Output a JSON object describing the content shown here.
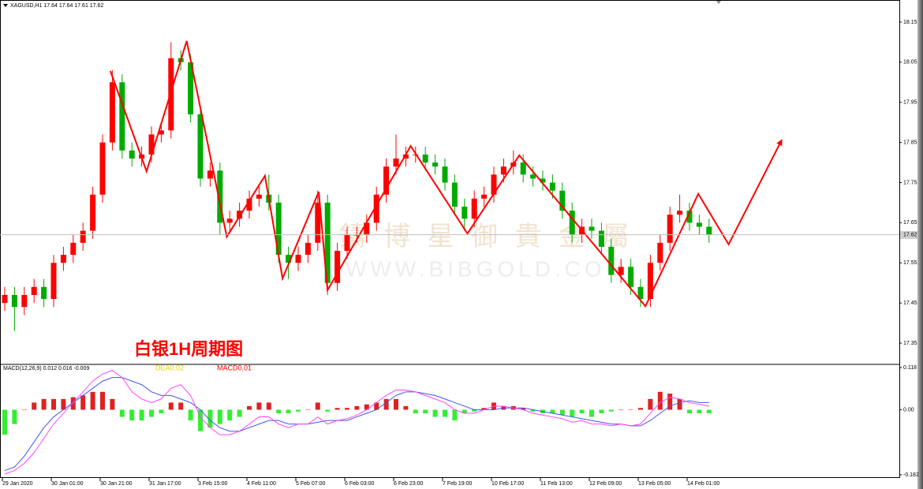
{
  "chart_data": [
    {
      "type": "candlestick",
      "title": "XAGUSD,H1  17.64 17.64 17.61 17.62",
      "annotation": "白银1H周期图",
      "watermark": "鑄 博 星 御 貴 金 屬",
      "watermark_url": "WWW.BIBGOLD.COM",
      "categories": [
        "29 Jan 2020",
        null,
        null,
        null,
        null,
        "30 Jan 01:00",
        null,
        null,
        null,
        null,
        "30 Jan 21:00",
        null,
        null,
        null,
        null,
        "31 Jan 17:00",
        null,
        null,
        null,
        null,
        "3 Feb 15:00",
        null,
        null,
        null,
        null,
        "4 Feb 11:00",
        null,
        null,
        null,
        null,
        "5 Feb 07:00",
        null,
        null,
        null,
        null,
        "6 Feb 03:00",
        null,
        null,
        null,
        null,
        "6 Feb 23:00",
        null,
        null,
        null,
        null,
        "7 Feb 19:00",
        null,
        null,
        null,
        null,
        "10 Feb 17:00",
        null,
        null,
        null,
        null,
        "11 Feb 13:00",
        null,
        null,
        null,
        null,
        "12 Feb 09:00",
        null,
        null,
        null,
        null,
        "13 Feb 05:00",
        null,
        null,
        null,
        null,
        "14 Feb 01:00",
        null,
        null
      ],
      "open": [
        17.45,
        17.47,
        17.44,
        17.47,
        17.49,
        17.46,
        17.55,
        17.57,
        17.6,
        17.63,
        17.72,
        17.85,
        18.0,
        17.83,
        17.81,
        17.82,
        17.87,
        17.88,
        18.06,
        18.05,
        17.92,
        17.76,
        17.78,
        17.65,
        17.66,
        17.68,
        17.71,
        17.72,
        17.7,
        17.57,
        17.55,
        17.57,
        17.6,
        17.7,
        17.5,
        17.58,
        17.62,
        17.62,
        17.65,
        17.72,
        17.79,
        17.81,
        17.82,
        17.82,
        17.8,
        17.79,
        17.75,
        17.69,
        17.66,
        17.71,
        17.72,
        17.77,
        17.79,
        17.8,
        17.77,
        17.76,
        17.75,
        17.73,
        17.68,
        17.62,
        17.64,
        17.63,
        17.59,
        17.52,
        17.54,
        17.49,
        17.46,
        17.55,
        17.6,
        17.67,
        17.68,
        17.65,
        17.64
      ],
      "high": [
        17.49,
        17.49,
        17.49,
        17.51,
        17.51,
        17.57,
        17.59,
        17.62,
        17.65,
        17.74,
        17.87,
        18.03,
        18.02,
        17.85,
        17.84,
        17.89,
        17.9,
        18.1,
        18.08,
        18.07,
        17.94,
        17.8,
        17.8,
        17.68,
        17.7,
        17.73,
        17.74,
        17.77,
        17.72,
        17.59,
        17.59,
        17.62,
        17.73,
        17.72,
        17.6,
        17.64,
        17.64,
        17.67,
        17.74,
        17.81,
        17.87,
        17.84,
        17.84,
        17.84,
        17.82,
        17.81,
        17.77,
        17.71,
        17.73,
        17.74,
        17.79,
        17.81,
        17.83,
        17.82,
        17.79,
        17.78,
        17.77,
        17.75,
        17.7,
        17.66,
        17.66,
        17.65,
        17.61,
        17.56,
        17.56,
        17.51,
        17.57,
        17.62,
        17.69,
        17.72,
        17.7,
        17.67,
        17.66
      ],
      "low": [
        17.43,
        17.38,
        17.42,
        17.45,
        17.44,
        17.44,
        17.53,
        17.55,
        17.58,
        17.61,
        17.7,
        17.83,
        17.81,
        17.79,
        17.79,
        17.8,
        17.85,
        17.86,
        18.03,
        17.9,
        17.74,
        17.74,
        17.62,
        17.63,
        17.64,
        17.66,
        17.69,
        17.68,
        17.55,
        17.51,
        17.53,
        17.55,
        17.58,
        17.47,
        17.48,
        17.56,
        17.6,
        17.6,
        17.63,
        17.7,
        17.77,
        17.79,
        17.8,
        17.78,
        17.77,
        17.73,
        17.67,
        17.63,
        17.64,
        17.69,
        17.7,
        17.75,
        17.77,
        17.75,
        17.74,
        17.73,
        17.71,
        17.66,
        17.6,
        17.6,
        17.61,
        17.57,
        17.5,
        17.5,
        17.47,
        17.44,
        17.44,
        17.53,
        17.58,
        17.65,
        17.63,
        17.62,
        17.6
      ],
      "close": [
        17.47,
        17.44,
        17.47,
        17.49,
        17.46,
        17.55,
        17.57,
        17.6,
        17.63,
        17.72,
        17.85,
        18.0,
        17.83,
        17.81,
        17.82,
        17.87,
        17.88,
        18.06,
        18.05,
        17.92,
        17.76,
        17.78,
        17.65,
        17.66,
        17.68,
        17.71,
        17.72,
        17.7,
        17.57,
        17.55,
        17.57,
        17.6,
        17.7,
        17.5,
        17.58,
        17.62,
        17.62,
        17.65,
        17.72,
        17.79,
        17.81,
        17.82,
        17.82,
        17.8,
        17.79,
        17.75,
        17.69,
        17.66,
        17.71,
        17.72,
        17.77,
        17.79,
        17.8,
        17.77,
        17.76,
        17.75,
        17.73,
        17.68,
        17.62,
        17.64,
        17.63,
        17.59,
        17.52,
        17.54,
        17.49,
        17.46,
        17.55,
        17.6,
        17.67,
        17.68,
        17.65,
        17.64,
        17.62
      ],
      "up_color": "#ff0000",
      "down_color": "#00aa00",
      "last_price": 17.62,
      "zigzag": {
        "color": "#ff0000",
        "x": [
          10.8,
          14.5,
          18.6,
          22.7,
          26.6,
          28.4,
          32.1,
          33.0,
          41.5,
          47.3,
          52.6,
          65.5,
          70.9,
          74.0,
          79.4
        ],
        "y": [
          18.028,
          17.778,
          18.103,
          17.615,
          17.767,
          17.511,
          17.727,
          17.482,
          17.841,
          17.623,
          17.818,
          17.442,
          17.722,
          17.596,
          17.855
        ]
      },
      "ylim": [
        17.297,
        18.205
      ],
      "yticks": [
        17.35,
        17.45,
        17.55,
        17.65,
        17.75,
        17.85,
        17.95,
        18.05,
        18.15
      ]
    },
    {
      "type": "macd",
      "title": "MACD(12,26,9) 0.012 0.016 -0.009",
      "legend": [
        {
          "text": "DEA0.02",
          "color": "#e6d200"
        },
        {
          "text": "MACD0.01",
          "color": "#ff0000"
        }
      ],
      "histogram": [
        -0.07,
        -0.04,
        0.0,
        0.02,
        0.03,
        0.03,
        0.03,
        0.035,
        0.04,
        0.05,
        0.05,
        0.03,
        -0.02,
        -0.03,
        -0.03,
        -0.02,
        -0.01,
        0.02,
        0.02,
        -0.03,
        -0.06,
        -0.05,
        -0.04,
        -0.03,
        -0.02,
        0.01,
        0.02,
        0.02,
        -0.01,
        -0.01,
        -0.005,
        0.0,
        0.02,
        -0.005,
        0.005,
        0.005,
        0.01,
        0.015,
        0.02,
        0.03,
        0.03,
        0.01,
        -0.01,
        -0.01,
        -0.02,
        -0.02,
        -0.03,
        -0.01,
        -0.005,
        0.005,
        0.02,
        0.01,
        0.01,
        0.005,
        -0.005,
        -0.01,
        -0.01,
        -0.015,
        -0.02,
        -0.01,
        -0.02,
        -0.01,
        -0.005,
        0.0,
        0.0,
        0.005,
        0.03,
        0.05,
        0.045,
        0.03,
        -0.01,
        -0.01,
        -0.01
      ],
      "pos_color": "#dd2222",
      "neg_color": "#33ee33",
      "series": [
        {
          "color": "#4455ee",
          "values": [
            -0.17,
            -0.16,
            -0.13,
            -0.09,
            -0.05,
            -0.02,
            0.0,
            0.02,
            0.04,
            0.06,
            0.08,
            0.09,
            0.09,
            0.08,
            0.07,
            0.05,
            0.04,
            0.04,
            0.03,
            0.02,
            0.0,
            -0.03,
            -0.05,
            -0.06,
            -0.06,
            -0.05,
            -0.04,
            -0.03,
            -0.03,
            -0.04,
            -0.04,
            -0.04,
            -0.035,
            -0.03,
            -0.03,
            -0.03,
            -0.02,
            -0.01,
            0.0,
            0.02,
            0.04,
            0.05,
            0.05,
            0.045,
            0.04,
            0.03,
            0.02,
            0.01,
            0.0,
            0.0,
            0.0,
            0.005,
            0.005,
            0.005,
            0.0,
            -0.005,
            -0.01,
            -0.015,
            -0.02,
            -0.025,
            -0.03,
            -0.035,
            -0.04,
            -0.04,
            -0.045,
            -0.045,
            -0.03,
            -0.01,
            0.01,
            0.02,
            0.025,
            0.02,
            0.02
          ]
        },
        {
          "color": "#ff44ff",
          "values": [
            -0.18,
            -0.17,
            -0.15,
            -0.12,
            -0.08,
            -0.04,
            -0.01,
            0.02,
            0.05,
            0.08,
            0.1,
            0.11,
            0.09,
            0.05,
            0.03,
            0.02,
            0.03,
            0.06,
            0.07,
            0.04,
            -0.02,
            -0.05,
            -0.07,
            -0.07,
            -0.06,
            -0.04,
            -0.02,
            -0.02,
            -0.04,
            -0.05,
            -0.04,
            -0.04,
            -0.02,
            -0.04,
            -0.03,
            -0.025,
            -0.015,
            0.0,
            0.02,
            0.04,
            0.055,
            0.055,
            0.05,
            0.04,
            0.03,
            0.02,
            0.0,
            -0.01,
            -0.01,
            0.0,
            0.01,
            0.01,
            0.005,
            0.0,
            -0.01,
            -0.015,
            -0.02,
            -0.025,
            -0.035,
            -0.03,
            -0.04,
            -0.04,
            -0.045,
            -0.04,
            -0.045,
            -0.04,
            -0.01,
            0.02,
            0.035,
            0.03,
            0.02,
            0.015,
            0.01
          ]
        }
      ],
      "ylim": [
        -0.1908,
        0.1268
      ],
      "yticks": [
        -0.182,
        {
          "value": 0,
          "label": "0.00"
        },
        0.118
      ]
    }
  ]
}
